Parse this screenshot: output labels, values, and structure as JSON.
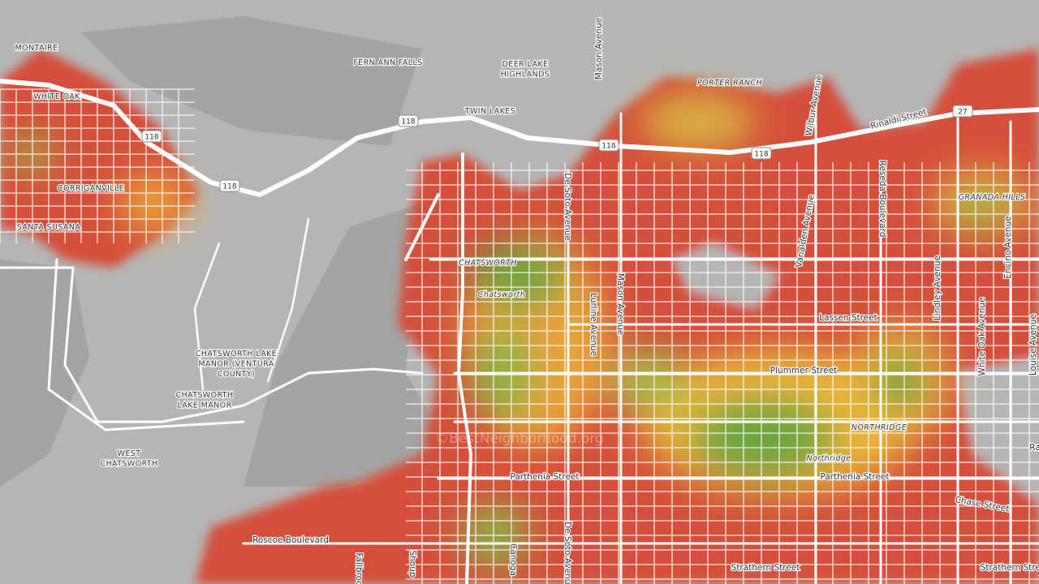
{
  "places": [
    [
      "MONTAIRE"
    ],
    [
      "WHITE OAK"
    ],
    [
      "CORRIGANVILLE"
    ],
    [
      "SANTA SUSANA"
    ],
    [
      "FERN ANN FALLS"
    ],
    [
      "DEER LAKE",
      "HIGHLANDS"
    ],
    [
      "TWIN LAKES"
    ],
    [
      "PORTER RANCH"
    ],
    [
      "CHATSWORTH"
    ],
    [
      "Chatsworth"
    ],
    [
      "CHATSWORTH LAKE",
      "MANOR (VENTURA",
      "COUNTY)"
    ],
    [
      "CHATSWORTH",
      "LAKE MANOR"
    ],
    [
      "WEST",
      "CHATSWORTH"
    ],
    [
      "GRANADA HILLS"
    ],
    [
      "NORTHRIDGE"
    ],
    [
      "Northridge"
    ]
  ],
  "streets": [
    "Mason Avenue",
    "Wilbur Avenue",
    "Rinaldi Street",
    "De Soto Avenue",
    "Reseda Boulevard",
    "Vanalden Avenue",
    "Encino Avenue",
    "Lindley Avenue",
    "White Oak Avenue",
    "Louise Avenue",
    "Lurline Avenue",
    "Mason Avenue",
    "Lassen Street",
    "Plummer Street",
    "Parthenia Street",
    "Parthenia Street",
    "Chase Street",
    "Roscoe Boulevard",
    "Strathern Street",
    "Strathern Street",
    "De Soto Avenue",
    "Canoga",
    "Shoup",
    "Fallbrook",
    "Ra"
  ],
  "shields": [
    "118",
    "118",
    "118",
    "118",
    "118",
    "27"
  ],
  "watermark": "©BestNeighborhood.org"
}
